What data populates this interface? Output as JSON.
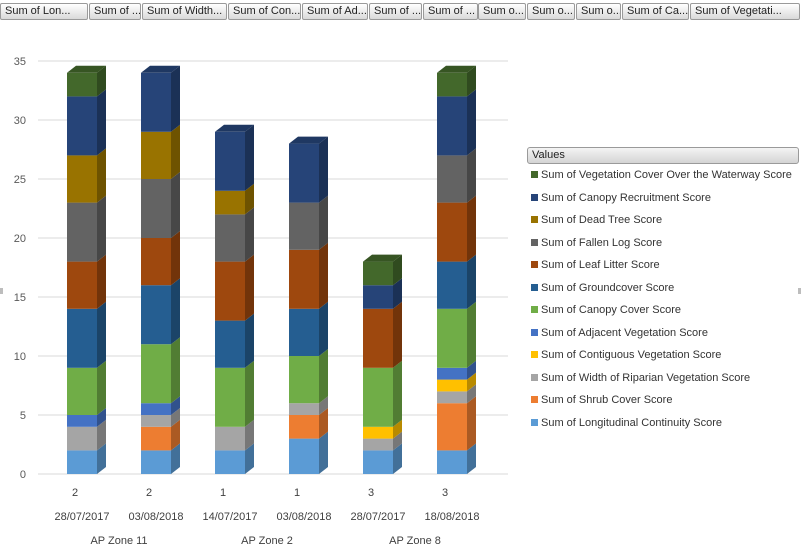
{
  "field_buttons": [
    "Sum of Lon...",
    "Sum of ...",
    "Sum of Width...",
    "Sum of Con...",
    "Sum of Ad...",
    "Sum of ...",
    "Sum of ...",
    "Sum o...",
    "Sum o...",
    "Sum o...",
    "Sum of Ca...",
    "Sum of Vegetati..."
  ],
  "colors": {
    "Sum of Longitudinal Continuity Score": "#5b9bd5",
    "Sum of Shrub Cover Score": "#ed7d31",
    "Sum of Width of Riparian Vegetation Score": "#a5a5a5",
    "Sum of Contiguous Vegetation Score": "#ffc000",
    "Sum of Adjacent Vegetation Score": "#4472c4",
    "Sum of Canopy Cover Score": "#70ad47",
    "Sum of Groundcover Score": "#255e91",
    "Sum of Leaf Litter Score": "#9e480e",
    "Sum of Fallen Log Score": "#636363",
    "Sum of Dead Tree Score": "#997300",
    "Sum of Canopy Recruitment Score": "#264478",
    "Sum of Vegetation Cover Over the Waterway Score": "#43682b"
  },
  "chart_data": {
    "type": "bar",
    "stacked": true,
    "three_d": true,
    "ylim": [
      0,
      35
    ],
    "yticks": [
      0,
      5,
      10,
      15,
      20,
      25,
      30,
      35
    ],
    "grid": true,
    "legend_title": "Values",
    "legend_position": "right",
    "categories": [
      {
        "label": "2",
        "date": "28/07/2017",
        "group": "AP Zone 11"
      },
      {
        "label": "2",
        "date": "03/08/2018",
        "group": "AP Zone 11"
      },
      {
        "label": "1",
        "date": "14/07/2017",
        "group": "AP Zone 2"
      },
      {
        "label": "1",
        "date": "03/08/2018",
        "group": "AP Zone 2"
      },
      {
        "label": "3",
        "date": "28/07/2017",
        "group": "AP Zone 8"
      },
      {
        "label": "3",
        "date": "18/08/2018",
        "group": "AP Zone 8"
      }
    ],
    "groups": [
      "AP Zone 11",
      "AP Zone 2",
      "AP Zone 8"
    ],
    "series": [
      {
        "name": "Sum of Longitudinal Continuity Score",
        "values": [
          2,
          2,
          2,
          3,
          2,
          2
        ]
      },
      {
        "name": "Sum of Shrub Cover Score",
        "values": [
          0,
          2,
          0,
          2,
          0,
          4
        ]
      },
      {
        "name": "Sum of Width of Riparian Vegetation Score",
        "values": [
          2,
          1,
          2,
          1,
          1,
          1
        ]
      },
      {
        "name": "Sum of Contiguous Vegetation Score",
        "values": [
          0,
          0,
          0,
          0,
          1,
          1
        ]
      },
      {
        "name": "Sum of Adjacent Vegetation Score",
        "values": [
          1,
          1,
          0,
          0,
          0,
          1
        ]
      },
      {
        "name": "Sum of Canopy Cover Score",
        "values": [
          4,
          5,
          5,
          4,
          5,
          5
        ]
      },
      {
        "name": "Sum of Groundcover Score",
        "values": [
          5,
          5,
          4,
          4,
          0,
          4
        ]
      },
      {
        "name": "Sum of Leaf Litter Score",
        "values": [
          4,
          4,
          5,
          5,
          5,
          5
        ]
      },
      {
        "name": "Sum of Fallen Log Score",
        "values": [
          5,
          5,
          4,
          4,
          0,
          4
        ]
      },
      {
        "name": "Sum of Dead Tree Score",
        "values": [
          4,
          4,
          2,
          0,
          0,
          0
        ]
      },
      {
        "name": "Sum of Canopy Recruitment Score",
        "values": [
          5,
          5,
          5,
          5,
          2,
          5
        ]
      },
      {
        "name": "Sum of Vegetation Cover Over the Waterway Score",
        "values": [
          2,
          0,
          0,
          0,
          2,
          2
        ]
      }
    ]
  }
}
